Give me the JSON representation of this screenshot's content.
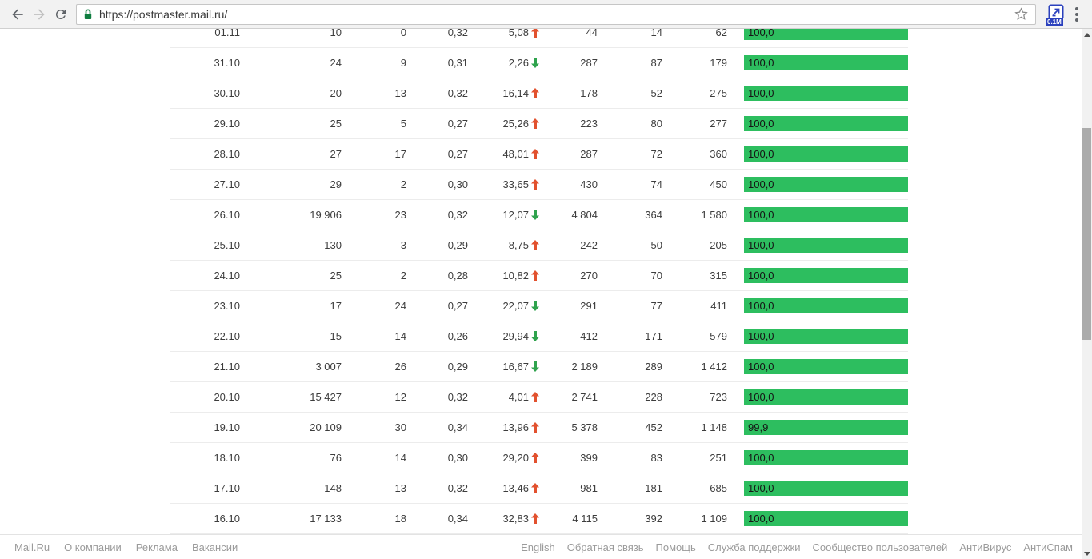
{
  "browser": {
    "url": "https://postmaster.mail.ru/",
    "extension_badge": "0.1M"
  },
  "table": {
    "rows": [
      {
        "date": "01.11",
        "c1": "10",
        "c2": "0",
        "c3": "0,32",
        "c4": "5,08",
        "trend": "up",
        "c5": "44",
        "c6": "14",
        "c7": "62",
        "rating": "100,0"
      },
      {
        "date": "31.10",
        "c1": "24",
        "c2": "9",
        "c3": "0,31",
        "c4": "2,26",
        "trend": "down",
        "c5": "287",
        "c6": "87",
        "c7": "179",
        "rating": "100,0"
      },
      {
        "date": "30.10",
        "c1": "20",
        "c2": "13",
        "c3": "0,32",
        "c4": "16,14",
        "trend": "up",
        "c5": "178",
        "c6": "52",
        "c7": "275",
        "rating": "100,0"
      },
      {
        "date": "29.10",
        "c1": "25",
        "c2": "5",
        "c3": "0,27",
        "c4": "25,26",
        "trend": "up",
        "c5": "223",
        "c6": "80",
        "c7": "277",
        "rating": "100,0"
      },
      {
        "date": "28.10",
        "c1": "27",
        "c2": "17",
        "c3": "0,27",
        "c4": "48,01",
        "trend": "up",
        "c5": "287",
        "c6": "72",
        "c7": "360",
        "rating": "100,0"
      },
      {
        "date": "27.10",
        "c1": "29",
        "c2": "2",
        "c3": "0,30",
        "c4": "33,65",
        "trend": "up",
        "c5": "430",
        "c6": "74",
        "c7": "450",
        "rating": "100,0"
      },
      {
        "date": "26.10",
        "c1": "19 906",
        "c2": "23",
        "c3": "0,32",
        "c4": "12,07",
        "trend": "down",
        "c5": "4 804",
        "c6": "364",
        "c7": "1 580",
        "rating": "100,0"
      },
      {
        "date": "25.10",
        "c1": "130",
        "c2": "3",
        "c3": "0,29",
        "c4": "8,75",
        "trend": "up",
        "c5": "242",
        "c6": "50",
        "c7": "205",
        "rating": "100,0"
      },
      {
        "date": "24.10",
        "c1": "25",
        "c2": "2",
        "c3": "0,28",
        "c4": "10,82",
        "trend": "up",
        "c5": "270",
        "c6": "70",
        "c7": "315",
        "rating": "100,0"
      },
      {
        "date": "23.10",
        "c1": "17",
        "c2": "24",
        "c3": "0,27",
        "c4": "22,07",
        "trend": "down",
        "c5": "291",
        "c6": "77",
        "c7": "411",
        "rating": "100,0"
      },
      {
        "date": "22.10",
        "c1": "15",
        "c2": "14",
        "c3": "0,26",
        "c4": "29,94",
        "trend": "down",
        "c5": "412",
        "c6": "171",
        "c7": "579",
        "rating": "100,0"
      },
      {
        "date": "21.10",
        "c1": "3 007",
        "c2": "26",
        "c3": "0,29",
        "c4": "16,67",
        "trend": "down",
        "c5": "2 189",
        "c6": "289",
        "c7": "1 412",
        "rating": "100,0"
      },
      {
        "date": "20.10",
        "c1": "15 427",
        "c2": "12",
        "c3": "0,32",
        "c4": "4,01",
        "trend": "up",
        "c5": "2 741",
        "c6": "228",
        "c7": "723",
        "rating": "100,0"
      },
      {
        "date": "19.10",
        "c1": "20 109",
        "c2": "30",
        "c3": "0,34",
        "c4": "13,96",
        "trend": "up",
        "c5": "5 378",
        "c6": "452",
        "c7": "1 148",
        "rating": "99,9"
      },
      {
        "date": "18.10",
        "c1": "76",
        "c2": "14",
        "c3": "0,30",
        "c4": "29,20",
        "trend": "up",
        "c5": "399",
        "c6": "83",
        "c7": "251",
        "rating": "100,0"
      },
      {
        "date": "17.10",
        "c1": "148",
        "c2": "13",
        "c3": "0,32",
        "c4": "13,46",
        "trend": "up",
        "c5": "981",
        "c6": "181",
        "c7": "685",
        "rating": "100,0"
      },
      {
        "date": "16.10",
        "c1": "17 133",
        "c2": "18",
        "c3": "0,34",
        "c4": "32,83",
        "trend": "up",
        "c5": "4 115",
        "c6": "392",
        "c7": "1 109",
        "rating": "100,0"
      }
    ]
  },
  "footer": {
    "left": [
      "Mail.Ru",
      "О компании",
      "Реклама",
      "Вакансии"
    ],
    "right": [
      "English",
      "Обратная связь",
      "Помощь",
      "Служба поддержки",
      "Сообщество пользователей",
      "АнтиВирус",
      "АнтиСпам"
    ]
  },
  "colors": {
    "bar_green": "#2dbe5f",
    "arrow_up_red": "#e2512e",
    "arrow_down_green": "#2fa34d",
    "lock_green": "#0f7d40",
    "extension_blue": "#2b41bd"
  }
}
